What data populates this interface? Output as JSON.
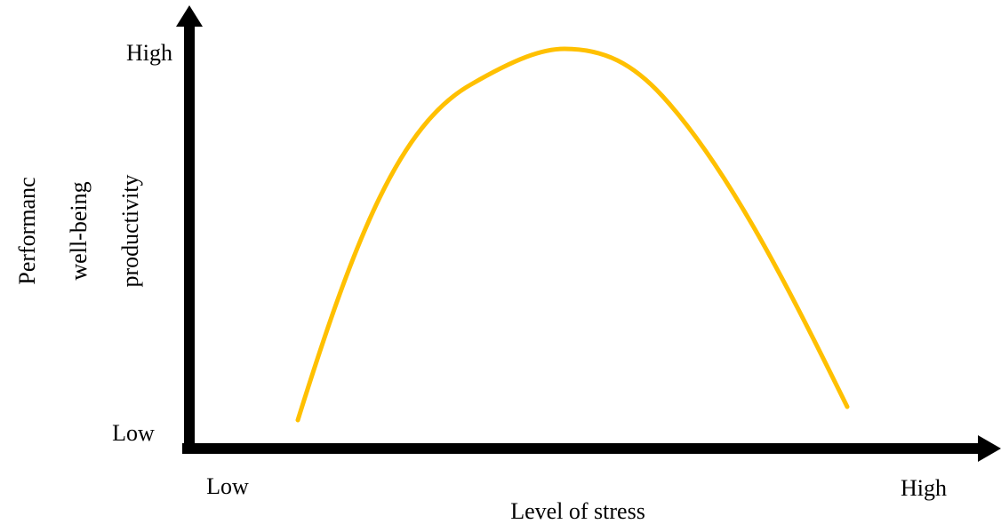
{
  "axes": {
    "y": {
      "label_lines": [
        "Performanc",
        "well-being",
        "productivity"
      ],
      "high": "High",
      "low": "Low"
    },
    "x": {
      "label": "Level of stress",
      "low": "Low",
      "high": "High"
    }
  }
}
